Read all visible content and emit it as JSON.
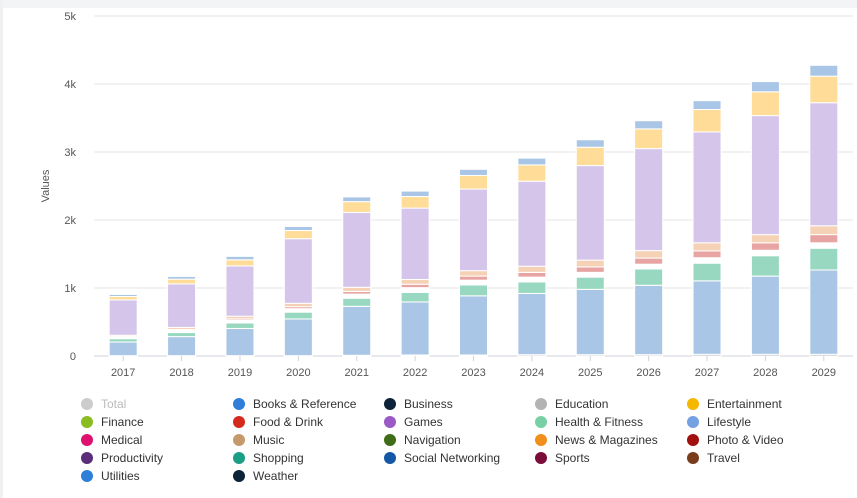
{
  "chart_data": {
    "type": "bar",
    "stacked": true,
    "categories": [
      "2017",
      "2018",
      "2019",
      "2020",
      "2021",
      "2022",
      "2023",
      "2024",
      "2025",
      "2026",
      "2027",
      "2028",
      "2029"
    ],
    "ylabel": "Values",
    "ylim": [
      0,
      5000
    ],
    "y_ticks": [
      0,
      1000,
      2000,
      3000,
      4000,
      5000
    ],
    "y_tick_labels": [
      "0",
      "1k",
      "2k",
      "3k",
      "4k",
      "5k"
    ],
    "grid": true,
    "series": [
      {
        "name": "Books & Reference",
        "color": "#b3b8bf",
        "values": [
          5,
          5,
          5,
          5,
          10,
          15,
          15,
          20,
          20,
          20,
          25,
          25,
          25
        ]
      },
      {
        "name": "Business",
        "color": "#a9c6e6",
        "values": [
          200,
          280,
          400,
          540,
          720,
          780,
          870,
          900,
          960,
          1020,
          1080,
          1150,
          1240
        ]
      },
      {
        "name": "Education",
        "color": "#99d8c0",
        "values": [
          50,
          60,
          80,
          100,
          120,
          140,
          160,
          170,
          180,
          240,
          260,
          300,
          320
        ]
      },
      {
        "name": "Entertainment",
        "color": "#ffffff",
        "values": [
          20,
          30,
          40,
          50,
          60,
          70,
          70,
          70,
          70,
          70,
          80,
          80,
          80
        ]
      },
      {
        "name": "Finance",
        "color": "#e8a3a3",
        "values": [
          10,
          15,
          20,
          30,
          40,
          50,
          60,
          70,
          80,
          90,
          100,
          110,
          120
        ]
      },
      {
        "name": "Food & Drink",
        "color": "#f5d2b5",
        "values": [
          20,
          30,
          40,
          50,
          60,
          70,
          80,
          90,
          100,
          110,
          120,
          120,
          130
        ]
      },
      {
        "name": "Games",
        "color": "#d6c5ea",
        "values": [
          520,
          640,
          740,
          950,
          1100,
          1050,
          1200,
          1250,
          1390,
          1500,
          1630,
          1750,
          1810
        ]
      },
      {
        "name": "Health & Fitness",
        "color": "#ffdc97",
        "values": [
          50,
          70,
          90,
          120,
          160,
          170,
          200,
          240,
          270,
          290,
          330,
          350,
          390
        ]
      },
      {
        "name": "Lifestyle",
        "color": "#a9c6e6",
        "values": [
          30,
          40,
          50,
          60,
          70,
          80,
          90,
          100,
          110,
          120,
          130,
          150,
          160
        ]
      }
    ],
    "legend": {
      "placement": "bottom",
      "entries": [
        {
          "name": "Total",
          "color": "#cccccc",
          "muted": true
        },
        {
          "name": "Books & Reference",
          "color": "#2f7ed8"
        },
        {
          "name": "Business",
          "color": "#0d233a"
        },
        {
          "name": "Education",
          "color": "#b3b3b3"
        },
        {
          "name": "Entertainment",
          "color": "#f5b700"
        },
        {
          "name": "Finance",
          "color": "#8bbc21"
        },
        {
          "name": "Food & Drink",
          "color": "#d42a1e"
        },
        {
          "name": "Games",
          "color": "#9b59c6"
        },
        {
          "name": "Health & Fitness",
          "color": "#77d1a4"
        },
        {
          "name": "Lifestyle",
          "color": "#74a0e4"
        },
        {
          "name": "Medical",
          "color": "#e0106e"
        },
        {
          "name": "Music",
          "color": "#c49a6c"
        },
        {
          "name": "Navigation",
          "color": "#3f6c17"
        },
        {
          "name": "News & Magazines",
          "color": "#f28f1c"
        },
        {
          "name": "Photo & Video",
          "color": "#a10f0f"
        },
        {
          "name": "Productivity",
          "color": "#5b2c7a"
        },
        {
          "name": "Shopping",
          "color": "#1a9e86"
        },
        {
          "name": "Social Networking",
          "color": "#1357a6"
        },
        {
          "name": "Sports",
          "color": "#7a0d3a"
        },
        {
          "name": "Travel",
          "color": "#7a3b1c"
        },
        {
          "name": "Utilities",
          "color": "#2f7ed8"
        },
        {
          "name": "Weather",
          "color": "#0d233a"
        }
      ]
    }
  }
}
